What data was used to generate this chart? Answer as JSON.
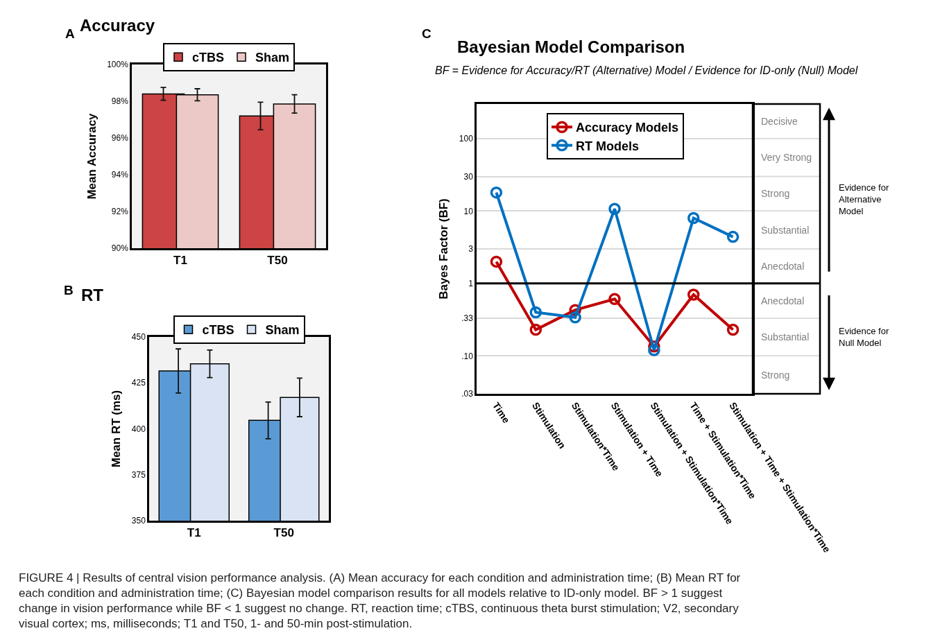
{
  "chart_data": [
    {
      "type": "bar",
      "title": "Accuracy",
      "ylabel": "Mean Accuracy",
      "categories": [
        "T1",
        "T50"
      ],
      "series": [
        {
          "name": "cTBS",
          "color": "#cc4444",
          "values": [
            98.4,
            97.2
          ],
          "errors": [
            0.35,
            0.75
          ]
        },
        {
          "name": "Sham",
          "color": "#ecc9c7",
          "values": [
            98.35,
            97.85
          ],
          "errors": [
            0.33,
            0.5
          ]
        }
      ],
      "ylim": [
        90,
        100
      ],
      "yticks": [
        {
          "value": 90,
          "label": "90%"
        },
        {
          "value": 92,
          "label": "92%"
        },
        {
          "value": 94,
          "label": "94%"
        },
        {
          "value": 96,
          "label": "96%"
        },
        {
          "value": 98,
          "label": "98%"
        },
        {
          "value": 100,
          "label": "100%"
        }
      ],
      "legend": "top",
      "grid": false,
      "annotations": [
        "A"
      ]
    },
    {
      "type": "bar",
      "title": "RT",
      "ylabel": "Mean RT (ms)",
      "categories": [
        "T1",
        "T50"
      ],
      "series": [
        {
          "name": "cTBS",
          "color": "#5b9bd5",
          "values": [
            431.5,
            404.6
          ],
          "errors": [
            12,
            10
          ]
        },
        {
          "name": "Sham",
          "color": "#dae3f3",
          "values": [
            435.4,
            417.1
          ],
          "errors": [
            7.5,
            10.5
          ]
        }
      ],
      "ylim": [
        350,
        450
      ],
      "yticks": [
        350,
        375,
        400,
        425,
        450
      ],
      "legend": "top",
      "grid": false,
      "annotations": [
        "B"
      ]
    },
    {
      "type": "line",
      "title": "Bayesian Model Comparison",
      "subtitle": "BF = Evidence for Accuracy/RT (Alternative) Model / Evidence for ID-only (Null) Model",
      "ylabel": "Bayes Factor (BF)",
      "categories": [
        "Time",
        "Stimulation",
        "Stimulation*Time",
        "Stimulation + Time",
        "Stimulation + Stimulation*Time",
        "Time + Stimulation*Time",
        "Stimulation + Time + Stimulation*Time"
      ],
      "series": [
        {
          "name": "Accuracy Models",
          "color": "#c00000",
          "values": [
            2.0,
            0.23,
            0.43,
            0.61,
            0.135,
            0.7,
            0.23
          ]
        },
        {
          "name": "RT Models",
          "color": "#0070c0",
          "values": [
            18,
            0.4,
            0.34,
            10.7,
            0.12,
            8,
            4.4
          ]
        }
      ],
      "log": "y",
      "ylim": [
        0.03,
        300
      ],
      "yticks": [
        {
          "value": 0.03,
          "label": ".03"
        },
        {
          "value": 0.1,
          "label": ".10"
        },
        {
          "value": 0.33,
          "label": ".33"
        },
        1,
        3,
        10,
        30,
        100
      ],
      "grid": "y",
      "marker": "circle",
      "line_style": "solid",
      "legend": "top",
      "ref_lines": [
        {
          "axis": "y",
          "value": 1,
          "color": "#000000"
        }
      ],
      "annotations": [
        "C",
        "Evidence for\nAlternative\nModel",
        "Evidence for\nNull Model",
        "Decisive",
        "Very Strong",
        "Strong",
        "Substantial",
        "Anecdotal",
        "Anecdotal",
        "Substantial",
        "Strong",
        "FIGURE 4 | Results of central vision performance analysis. (A) Mean accuracy for each condition and administration time; (B) Mean RT for each condition and administration time; (C) Bayesian model comparison results for all models relative to ID-only model. BF > 1 suggest change in vision performance while BF < 1 suggest no change. RT, reaction time; cTBS, continuous theta burst stimulation; V2, secondary visual cortex; ms, milliseconds; T1 and T50, 1- and 50-min post-stimulation."
      ]
    }
  ]
}
